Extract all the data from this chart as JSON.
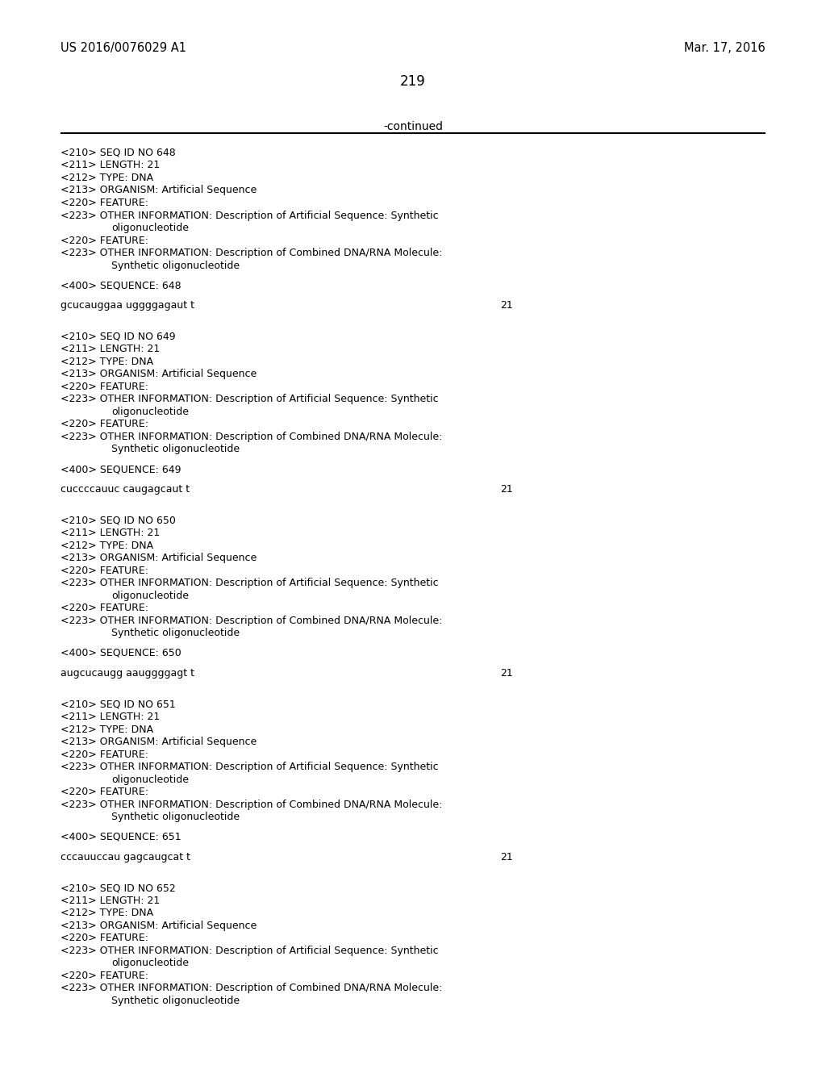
{
  "background_color": "#ffffff",
  "header_left": "US 2016/0076029 A1",
  "header_right": "Mar. 17, 2016",
  "page_number": "219",
  "continued_text": "-continued",
  "monospace_font": "Courier New",
  "serif_font": "Times New Roman",
  "blocks": [
    {
      "seq_no": "648",
      "sequence": "gcucauggaa uggggagaut t",
      "seq_length": "21",
      "partial": false
    },
    {
      "seq_no": "649",
      "sequence": "cuccccauuc caugagcaut t",
      "seq_length": "21",
      "partial": false
    },
    {
      "seq_no": "650",
      "sequence": "augcucaugg aauggggagt t",
      "seq_length": "21",
      "partial": false
    },
    {
      "seq_no": "651",
      "sequence": "cccauuccau gagcaugcat t",
      "seq_length": "21",
      "partial": false
    },
    {
      "seq_no": "652",
      "sequence": null,
      "seq_length": "21",
      "partial": true
    }
  ]
}
